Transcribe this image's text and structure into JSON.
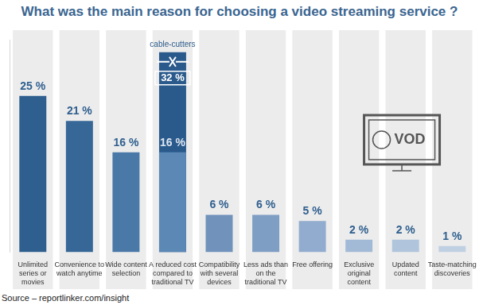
{
  "chart_data": {
    "type": "bar",
    "title": "What was the main reason for choosing a video streaming service ?",
    "source": "Source – reportlinker.com/insight",
    "categories": [
      "Unlimited series or movies",
      "Convenience to watch anytime",
      "Wide content selection",
      "A reduced cost compared to traditional TV",
      "Compatibility with several devices",
      "Less ads than on the traditional TV",
      "Free offering",
      "Exclusive original content",
      "Updated content",
      "Taste-matching discoveries"
    ],
    "series": [
      {
        "colors": [
          "#2f5f8f",
          "#366797",
          "#4a79a8",
          "#5b88b5",
          "#7092bb",
          "#7f9ec4",
          "#91acce",
          "#a2bad6",
          "#b0c5dc",
          "#bfd0e3"
        ],
        "values": [
          25,
          21,
          16,
          16,
          6,
          6,
          5,
          2,
          2,
          1
        ],
        "value_labels": [
          "25 %",
          "21 %",
          "16 %",
          "16 %",
          "6 %",
          "6 %",
          "5 %",
          "2 %",
          "2 %",
          "1 %"
        ]
      },
      {
        "name": "cable-cutters",
        "color": "#2a5a8c",
        "values": [
          null,
          null,
          null,
          32,
          null,
          null,
          null,
          null,
          null,
          null
        ],
        "value_labels": [
          null,
          null,
          null,
          "32 %",
          null,
          null,
          null,
          null,
          null,
          null
        ]
      }
    ],
    "annotations": [
      {
        "text": "VOD"
      }
    ],
    "ylim": [
      0,
      34
    ],
    "grid": false,
    "tick_labels": "x",
    "data_labels": true
  }
}
